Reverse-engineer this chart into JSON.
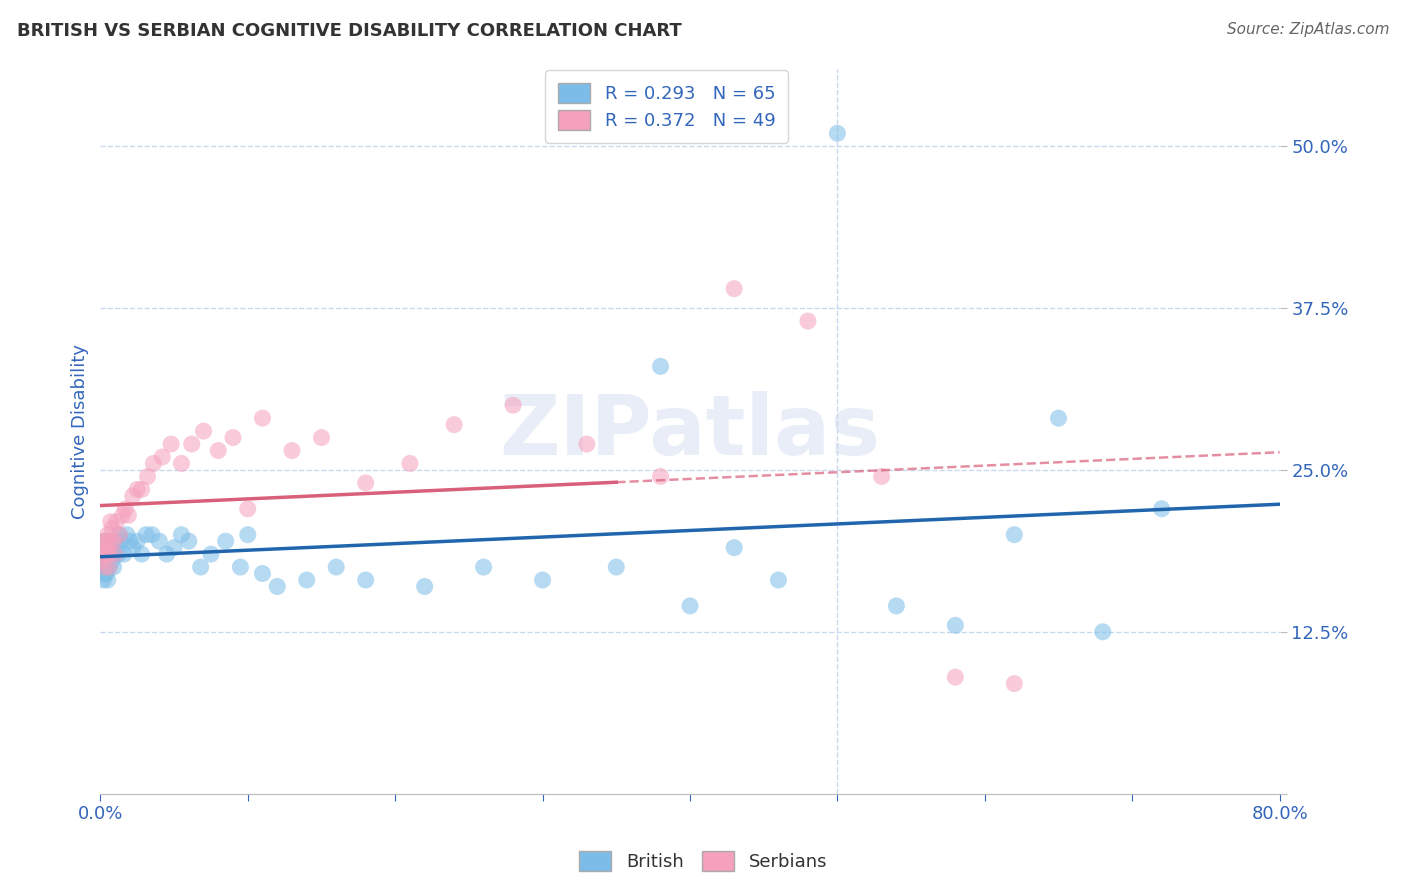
{
  "title": "BRITISH VS SERBIAN COGNITIVE DISABILITY CORRELATION CHART",
  "source": "Source: ZipAtlas.com",
  "ylabel": "Cognitive Disability",
  "xlim": [
    0.0,
    0.8
  ],
  "ylim": [
    0.0,
    0.56
  ],
  "yticks": [
    0.0,
    0.125,
    0.25,
    0.375,
    0.5
  ],
  "ytick_labels": [
    "",
    "12.5%",
    "25.0%",
    "37.5%",
    "50.0%"
  ],
  "xtick_positions": [
    0.0,
    0.1,
    0.2,
    0.3,
    0.4,
    0.5,
    0.6,
    0.7,
    0.8
  ],
  "xtick_labels": [
    "0.0%",
    "",
    "",
    "",
    "",
    "",
    "",
    "",
    "80.0%"
  ],
  "british_R": 0.293,
  "british_N": 65,
  "serbian_R": 0.372,
  "serbian_N": 49,
  "british_color": "#7bbde8",
  "serbian_color": "#f5a0bc",
  "british_trend_color": "#2166ac",
  "serbian_trend_color": "#d9607a",
  "title_color": "#333333",
  "source_color": "#666666",
  "axis_label_color": "#3366bb",
  "tick_color": "#3366bb",
  "grid_color": "#c8d8ee",
  "background_color": "#ffffff",
  "watermark": "ZIPatlas",
  "british_x": [
    0.001,
    0.001,
    0.002,
    0.002,
    0.002,
    0.003,
    0.003,
    0.003,
    0.004,
    0.004,
    0.004,
    0.005,
    0.005,
    0.005,
    0.006,
    0.006,
    0.007,
    0.007,
    0.008,
    0.008,
    0.009,
    0.009,
    0.01,
    0.011,
    0.012,
    0.013,
    0.014,
    0.016,
    0.018,
    0.02,
    0.022,
    0.025,
    0.028,
    0.031,
    0.035,
    0.04,
    0.045,
    0.05,
    0.055,
    0.06,
    0.068,
    0.075,
    0.085,
    0.095,
    0.1,
    0.11,
    0.12,
    0.14,
    0.16,
    0.18,
    0.22,
    0.26,
    0.3,
    0.35,
    0.38,
    0.4,
    0.43,
    0.46,
    0.5,
    0.54,
    0.58,
    0.62,
    0.65,
    0.68,
    0.72
  ],
  "british_y": [
    0.185,
    0.175,
    0.19,
    0.175,
    0.165,
    0.18,
    0.17,
    0.195,
    0.185,
    0.175,
    0.17,
    0.19,
    0.18,
    0.165,
    0.185,
    0.175,
    0.195,
    0.185,
    0.19,
    0.18,
    0.185,
    0.175,
    0.195,
    0.19,
    0.185,
    0.2,
    0.195,
    0.185,
    0.2,
    0.195,
    0.19,
    0.195,
    0.185,
    0.2,
    0.2,
    0.195,
    0.185,
    0.19,
    0.2,
    0.195,
    0.175,
    0.185,
    0.195,
    0.175,
    0.2,
    0.17,
    0.16,
    0.165,
    0.175,
    0.165,
    0.16,
    0.175,
    0.165,
    0.175,
    0.33,
    0.145,
    0.19,
    0.165,
    0.51,
    0.145,
    0.13,
    0.2,
    0.29,
    0.125,
    0.22
  ],
  "serbian_x": [
    0.001,
    0.001,
    0.002,
    0.002,
    0.003,
    0.003,
    0.004,
    0.004,
    0.005,
    0.005,
    0.006,
    0.006,
    0.007,
    0.007,
    0.008,
    0.009,
    0.01,
    0.011,
    0.013,
    0.015,
    0.017,
    0.019,
    0.022,
    0.025,
    0.028,
    0.032,
    0.036,
    0.042,
    0.048,
    0.055,
    0.062,
    0.07,
    0.08,
    0.09,
    0.1,
    0.11,
    0.13,
    0.15,
    0.18,
    0.21,
    0.24,
    0.28,
    0.33,
    0.38,
    0.43,
    0.48,
    0.53,
    0.58,
    0.62
  ],
  "serbian_y": [
    0.19,
    0.18,
    0.195,
    0.185,
    0.185,
    0.175,
    0.195,
    0.185,
    0.19,
    0.2,
    0.185,
    0.175,
    0.195,
    0.21,
    0.205,
    0.195,
    0.185,
    0.21,
    0.2,
    0.215,
    0.22,
    0.215,
    0.23,
    0.235,
    0.235,
    0.245,
    0.255,
    0.26,
    0.27,
    0.255,
    0.27,
    0.28,
    0.265,
    0.275,
    0.22,
    0.29,
    0.265,
    0.275,
    0.24,
    0.255,
    0.285,
    0.3,
    0.27,
    0.245,
    0.39,
    0.365,
    0.245,
    0.09,
    0.085
  ]
}
